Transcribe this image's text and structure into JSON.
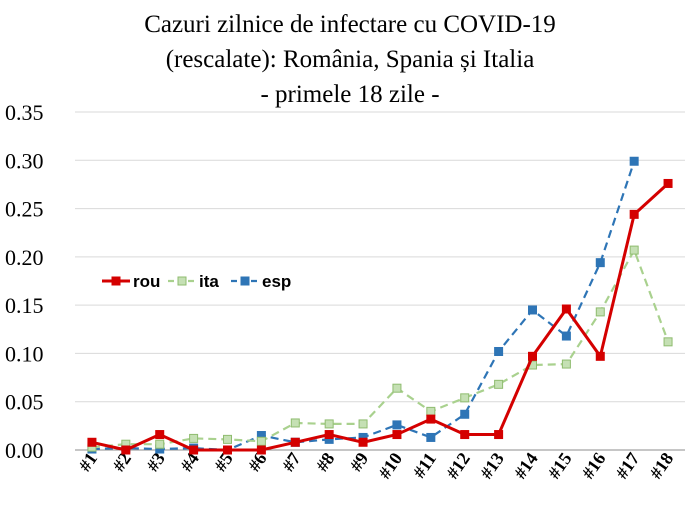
{
  "chart_data": {
    "type": "line",
    "title": [
      "Cazuri zilnice de infectare cu COVID-19",
      "(rescalate): România, Spania și Italia",
      "- primele 18 zile -"
    ],
    "xlabel": "",
    "ylabel": "",
    "categories": [
      "#1",
      "#2",
      "#3",
      "#4",
      "#5",
      "#6",
      "#7",
      "#8",
      "#9",
      "#10",
      "#11",
      "#12",
      "#13",
      "#14",
      "#15",
      "#16",
      "#17",
      "#18"
    ],
    "ylim": [
      0,
      0.35
    ],
    "yticks": [
      "0.00",
      "0.05",
      "0.10",
      "0.15",
      "0.20",
      "0.25",
      "0.30",
      "0.35"
    ],
    "grid": "horizontal",
    "legend_position": "left, mid-height",
    "series": [
      {
        "name": "rou",
        "color": "#d40000",
        "line_style": "solid",
        "marker": "square",
        "values": [
          0.008,
          0.0,
          0.016,
          0.0,
          0.0,
          0.0,
          0.008,
          0.016,
          0.008,
          0.016,
          0.032,
          0.016,
          0.016,
          0.097,
          0.146,
          0.097,
          0.244,
          0.276
        ]
      },
      {
        "name": "ita",
        "color": "#a9d18e",
        "line_style": "dashed",
        "marker": "square",
        "values": [
          0.003,
          0.006,
          0.006,
          0.012,
          0.011,
          0.009,
          0.028,
          0.027,
          0.027,
          0.064,
          0.04,
          0.054,
          0.068,
          0.088,
          0.089,
          0.143,
          0.207,
          0.112
        ]
      },
      {
        "name": "esp",
        "color": "#2e75b6",
        "line_style": "dashed",
        "marker": "square",
        "values": [
          0.001,
          0.002,
          0.001,
          0.002,
          0.0,
          0.015,
          0.008,
          0.011,
          0.013,
          0.026,
          0.013,
          0.037,
          0.102,
          0.145,
          0.118,
          0.194,
          0.299,
          null
        ]
      }
    ]
  }
}
